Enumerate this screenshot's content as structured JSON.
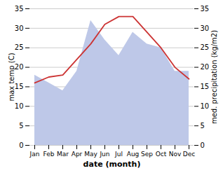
{
  "chart_data": {
    "type": "line",
    "categories": [
      "Jan",
      "Feb",
      "Mar",
      "Apr",
      "May",
      "Jun",
      "Jul",
      "Aug",
      "Sep",
      "Oct",
      "Nov",
      "Dec"
    ],
    "xlabel": "date (month)",
    "ylabel": "max temp (C)",
    "y2label": "med. precipitation (kg/m2)",
    "ylim": [
      0,
      35
    ],
    "yticks": [
      0,
      5,
      10,
      15,
      20,
      25,
      30,
      35
    ],
    "y2lim": [
      0,
      35
    ],
    "y2ticks": [
      0,
      5,
      10,
      15,
      20,
      25,
      30,
      35
    ],
    "grid": true,
    "series": [
      {
        "type": "area",
        "axis": "y2",
        "color": "#bec8e8",
        "values": [
          18,
          16,
          14,
          19,
          32,
          27,
          23,
          29,
          26,
          25,
          19,
          19
        ]
      },
      {
        "type": "line",
        "color": "#cc3333",
        "values": [
          16,
          17.5,
          18,
          22,
          26,
          31,
          33,
          33,
          29,
          25,
          20,
          17
        ]
      }
    ]
  }
}
